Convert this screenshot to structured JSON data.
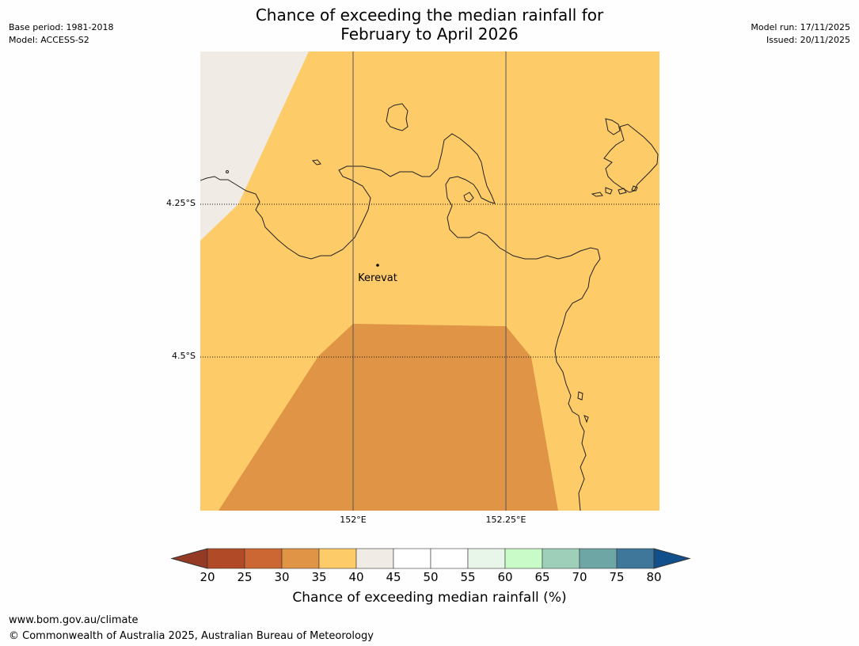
{
  "header": {
    "title_line1": "Chance of exceeding the median rainfall for",
    "title_line2": "February to April 2026",
    "base_period": "Base period: 1981-2018",
    "model": "Model: ACCESS-S2",
    "model_run": "Model run: 17/11/2025",
    "issued": "Issued: 20/11/2025"
  },
  "map": {
    "lat_labels": [
      "4.25°S",
      "4.5°S"
    ],
    "lon_labels": [
      "152°E",
      "152.25°E"
    ],
    "place": {
      "name": "Kerevat",
      "lon": 152.04,
      "lat": -4.347
    },
    "extent": {
      "lon_min": 151.75,
      "lon_max": 152.5,
      "lat_min": -4.75,
      "lat_max": -4.0
    },
    "region_colors": {
      "land_default": "#fdcb67",
      "below_35": "#df9446",
      "above_40": "#f0ebe5"
    }
  },
  "colorbar": {
    "ticks": [
      "20",
      "25",
      "30",
      "35",
      "40",
      "45",
      "50",
      "55",
      "60",
      "65",
      "70",
      "75",
      "80"
    ],
    "colors": [
      "#b04a27",
      "#cc6633",
      "#df9446",
      "#fdcb67",
      "#f0ebe5",
      "#ffffff",
      "#ffffff",
      "#e8f5e9",
      "#c8fbc8",
      "#9ecfb8",
      "#6ea6a6",
      "#3e7799"
    ],
    "under_color": "#943a25",
    "over_color": "#12508c",
    "label": "Chance of exceeding median rainfall (%)"
  },
  "footer": {
    "url": "www.bom.gov.au/climate",
    "copyright": "© Commonwealth of Australia 2025, Australian Bureau of Meteorology"
  }
}
